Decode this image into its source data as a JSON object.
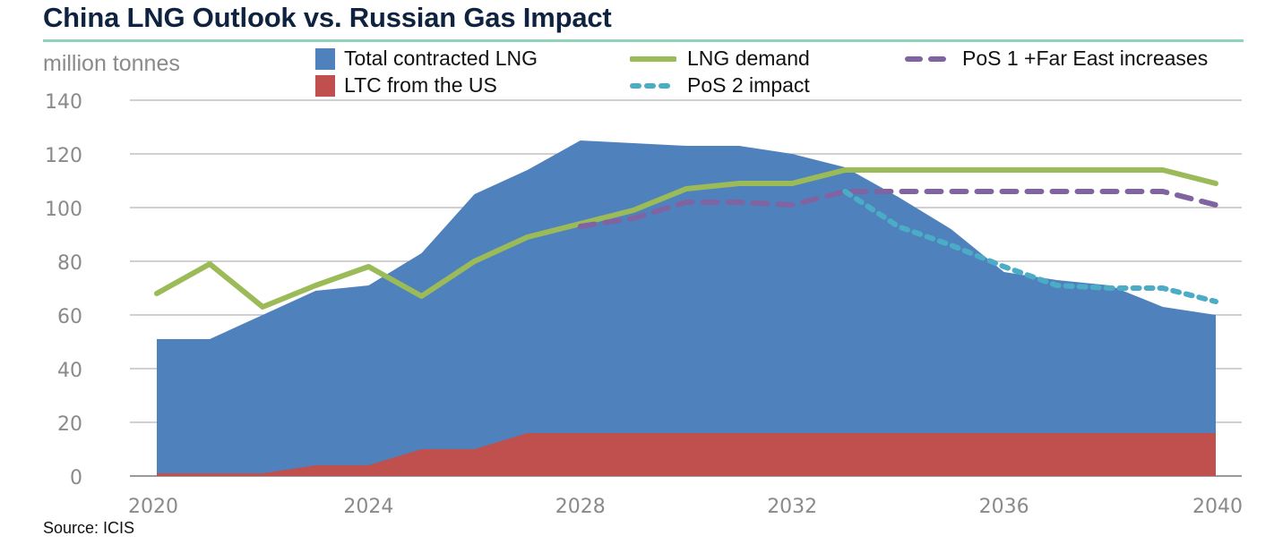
{
  "title": "China LNG Outlook vs. Russian Gas Impact",
  "unit_label": "million tonnes",
  "source": "Source: ICIS",
  "legend": [
    {
      "label": "Total contracted LNG",
      "color": "#4f81bd",
      "style": "area"
    },
    {
      "label": "LTC from the US",
      "color": "#c0504d",
      "style": "area"
    },
    {
      "label": "LNG demand",
      "color": "#9bbb59",
      "style": "solid"
    },
    {
      "label": "PoS 2 impact",
      "color": "#4bacc6",
      "style": "dotted"
    },
    {
      "label": "PoS 1 +Far East increases",
      "color": "#8064a2",
      "style": "dashed"
    }
  ],
  "chart_data": {
    "type": "area",
    "title": "China LNG Outlook vs. Russian Gas Impact",
    "xlabel": "",
    "ylabel": "million tonnes",
    "ylim": [
      0,
      140
    ],
    "yticks": [
      0,
      20,
      40,
      60,
      80,
      100,
      120,
      140
    ],
    "xlim": [
      2020,
      2040
    ],
    "xticks": [
      2020,
      2024,
      2028,
      2032,
      2036,
      2040
    ],
    "grid": true,
    "legend_position": "top",
    "x": [
      2020,
      2021,
      2022,
      2023,
      2024,
      2025,
      2026,
      2027,
      2028,
      2029,
      2030,
      2031,
      2032,
      2033,
      2034,
      2035,
      2036,
      2037,
      2038,
      2039,
      2040
    ],
    "series": [
      {
        "name": "Total contracted LNG",
        "type": "area",
        "color": "#4f81bd",
        "values": [
          51,
          51,
          60,
          69,
          71,
          83,
          105,
          114,
          125,
          124,
          123,
          123,
          120,
          115,
          104,
          92,
          76,
          73,
          71,
          63,
          60
        ]
      },
      {
        "name": "LTC from the US",
        "type": "area",
        "color": "#c0504d",
        "values": [
          1,
          1,
          1,
          4,
          4,
          10,
          10,
          16,
          16,
          16,
          16,
          16,
          16,
          16,
          16,
          16,
          16,
          16,
          16,
          16,
          16
        ]
      },
      {
        "name": "LNG demand",
        "type": "line",
        "style": "solid",
        "color": "#9bbb59",
        "values": [
          68,
          79,
          63,
          71,
          78,
          67,
          80,
          89,
          94,
          99,
          107,
          109,
          109,
          114,
          114,
          114,
          114,
          114,
          114,
          114,
          109
        ]
      },
      {
        "name": "PoS 1 +Far East increases",
        "type": "line",
        "style": "dashed",
        "color": "#8064a2",
        "values": [
          null,
          null,
          null,
          null,
          null,
          null,
          null,
          null,
          93,
          96,
          102,
          102,
          101,
          106,
          106,
          106,
          106,
          106,
          106,
          106,
          101
        ]
      },
      {
        "name": "PoS 2 impact",
        "type": "line",
        "style": "dotted",
        "color": "#4bacc6",
        "values": [
          null,
          null,
          null,
          null,
          null,
          null,
          null,
          null,
          null,
          null,
          null,
          null,
          null,
          106,
          93,
          86,
          78,
          71,
          70,
          70,
          65
        ]
      }
    ]
  }
}
